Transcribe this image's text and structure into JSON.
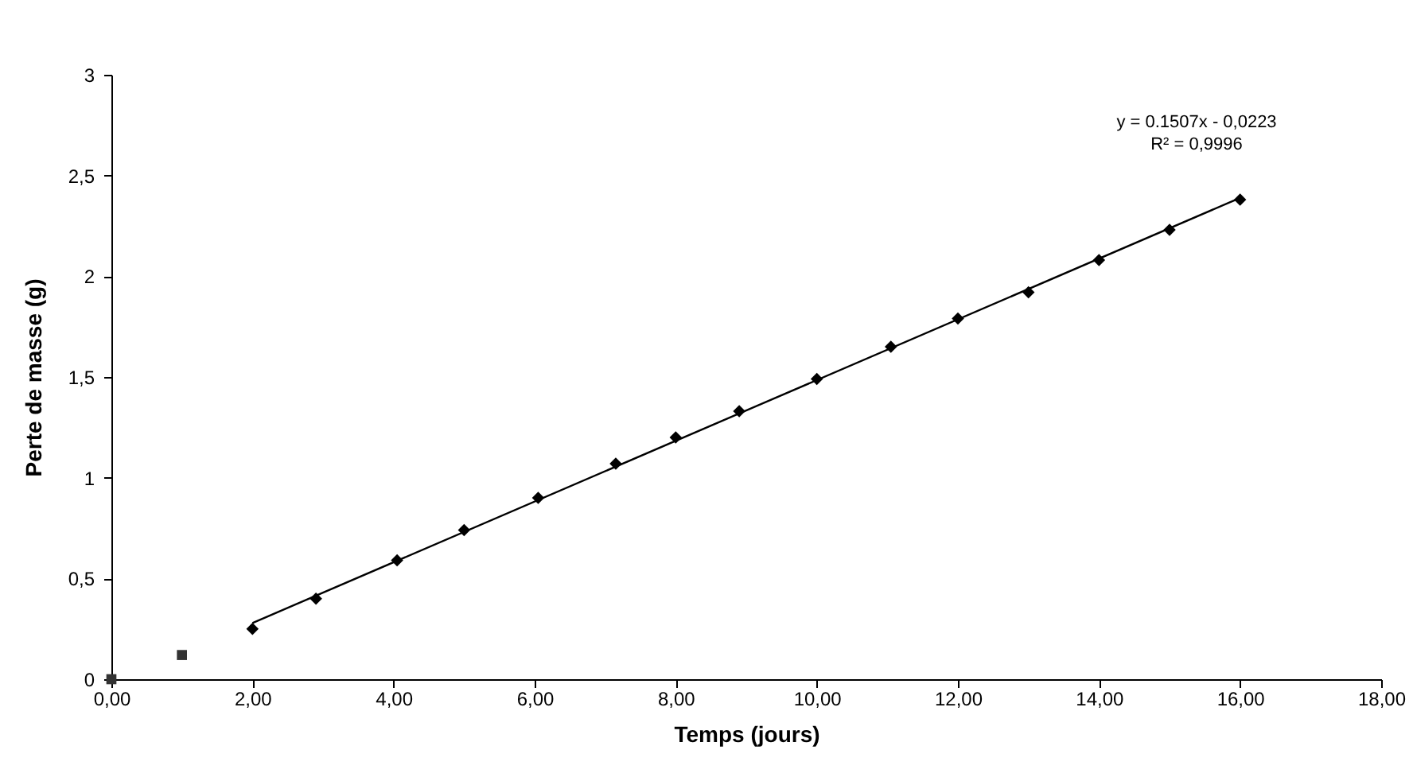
{
  "chart_data": {
    "type": "scatter",
    "xlabel": "Temps (jours)",
    "ylabel": "Perte de masse (g)",
    "xlim": [
      0,
      18
    ],
    "ylim": [
      0,
      3
    ],
    "xticks": [
      {
        "value": 0,
        "label": "0,00"
      },
      {
        "value": 2,
        "label": "2,00"
      },
      {
        "value": 4,
        "label": "4,00"
      },
      {
        "value": 6,
        "label": "6,00"
      },
      {
        "value": 8,
        "label": "8,00"
      },
      {
        "value": 10,
        "label": "10,00"
      },
      {
        "value": 12,
        "label": "12,00"
      },
      {
        "value": 14,
        "label": "14,00"
      },
      {
        "value": 16,
        "label": "16,00"
      },
      {
        "value": 18,
        "label": "18,00"
      }
    ],
    "yticks": [
      0,
      {
        "value": 0.5,
        "label": "0,5"
      },
      1,
      {
        "value": 1.5,
        "label": "1,5"
      },
      2,
      {
        "value": 2.5,
        "label": "2,5"
      },
      3
    ],
    "grid": false,
    "legend": false,
    "annotations": [
      "y = 0.1507x - 0,0223",
      "R² = 0,9996"
    ],
    "series": [
      {
        "type": "scatter",
        "marker": "square",
        "color": "#333333",
        "x": [
          0,
          1
        ],
        "values": [
          0,
          0.12
        ]
      },
      {
        "type": "line",
        "marker": "none",
        "color": "#000000",
        "x": [
          2,
          16
        ],
        "values": [
          0.279,
          2.389
        ]
      },
      {
        "type": "scatter",
        "marker": "diamond",
        "color": "#000000",
        "x": [
          2,
          2.9,
          4.05,
          5,
          6.05,
          7.15,
          8,
          8.9,
          10,
          11.05,
          12,
          13,
          14,
          15,
          16
        ],
        "values": [
          0.25,
          0.4,
          0.59,
          0.74,
          0.9,
          1.07,
          1.2,
          1.33,
          1.49,
          1.65,
          1.79,
          1.92,
          2.08,
          2.23,
          2.38
        ]
      }
    ]
  }
}
